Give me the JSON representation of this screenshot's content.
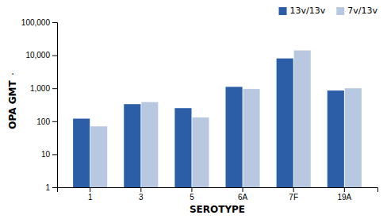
{
  "chart_data": {
    "type": "bar",
    "categories": [
      "1",
      "3",
      "5",
      "6A",
      "7F",
      "19A"
    ],
    "series": [
      {
        "name": "13v/13v",
        "color": "#2B5EA7",
        "values": [
          120,
          330,
          250,
          1100,
          8000,
          850
        ]
      },
      {
        "name": "7v/13v",
        "color": "#B8C8E0",
        "values": [
          70,
          380,
          130,
          950,
          14000,
          1000
        ]
      }
    ],
    "x_label": "SEROTYPE",
    "y_label": "OPA GMT",
    "annotations": [
      "."
    ],
    "log": "y",
    "ylim": [
      1,
      100000
    ],
    "yticks": [
      1,
      10,
      100,
      {
        "value": 1000,
        "label": "1,000"
      },
      {
        "value": 10000,
        "label": "10,000"
      },
      {
        "value": 100000,
        "label": "100,000"
      }
    ],
    "grid": false,
    "legend": "upper right"
  }
}
